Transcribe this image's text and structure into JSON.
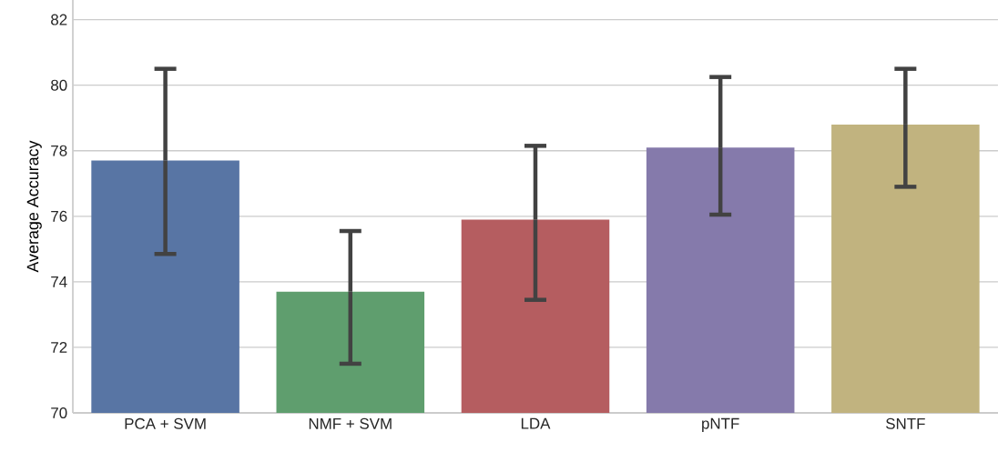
{
  "chart_data": {
    "type": "bar",
    "ylabel": "Average Accuracy",
    "categories": [
      "PCA + SVM",
      "NMF + SVM",
      "LDA",
      "pNTF",
      "SNTF"
    ],
    "values": [
      77.7,
      73.7,
      75.9,
      78.1,
      78.8
    ],
    "colors": [
      "#5875a4",
      "#5f9e6e",
      "#b55d60",
      "#857aab",
      "#c1b37f"
    ],
    "errors": [
      [
        74.85,
        80.5
      ],
      [
        71.5,
        75.55
      ],
      [
        73.45,
        78.15
      ],
      [
        76.05,
        80.25
      ],
      [
        76.9,
        80.5
      ]
    ],
    "ylim": [
      70,
      82.6
    ],
    "yticks": [
      70,
      72,
      74,
      76,
      78,
      80,
      82
    ],
    "grid": "y"
  }
}
